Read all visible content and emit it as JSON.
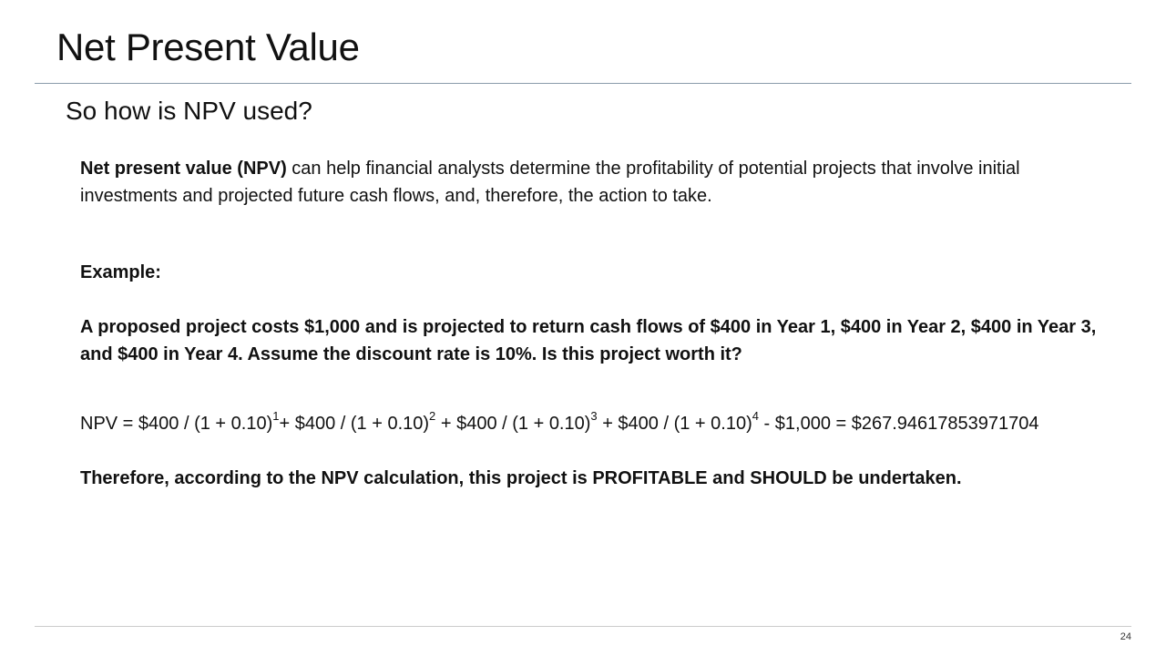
{
  "slide": {
    "title": "Net Present Value",
    "subtitle": "So how is NPV used?",
    "page_number": "24"
  },
  "intro": {
    "term": "Net present value (NPV)",
    "text": " can help financial analysts determine the profitability of potential projects that involve initial investments and projected future cash flows, and, therefore, the action to take."
  },
  "example": {
    "heading": "Example:",
    "problem": "A proposed project costs $1,000 and is projected to return cash flows of $400 in Year 1, $400 in Year 2, $400 in Year 3, and $400 in Year 4. Assume the discount rate is 10%. Is this project worth it?"
  },
  "formula": {
    "part1": "NPV = $400 / (1 + 0.10)",
    "exp1": "1",
    "part2": "+ $400 / (1 + 0.10)",
    "exp2": "2",
    "part3": " + $400 / (1 + 0.10)",
    "exp3": "3",
    "part4": " + $400 / (1 + 0.10)",
    "exp4": "4",
    "part5": " - $1,000 = $267.94617853971704"
  },
  "conclusion": "Therefore, according to the NPV calculation, this project is PROFITABLE and SHOULD be undertaken."
}
